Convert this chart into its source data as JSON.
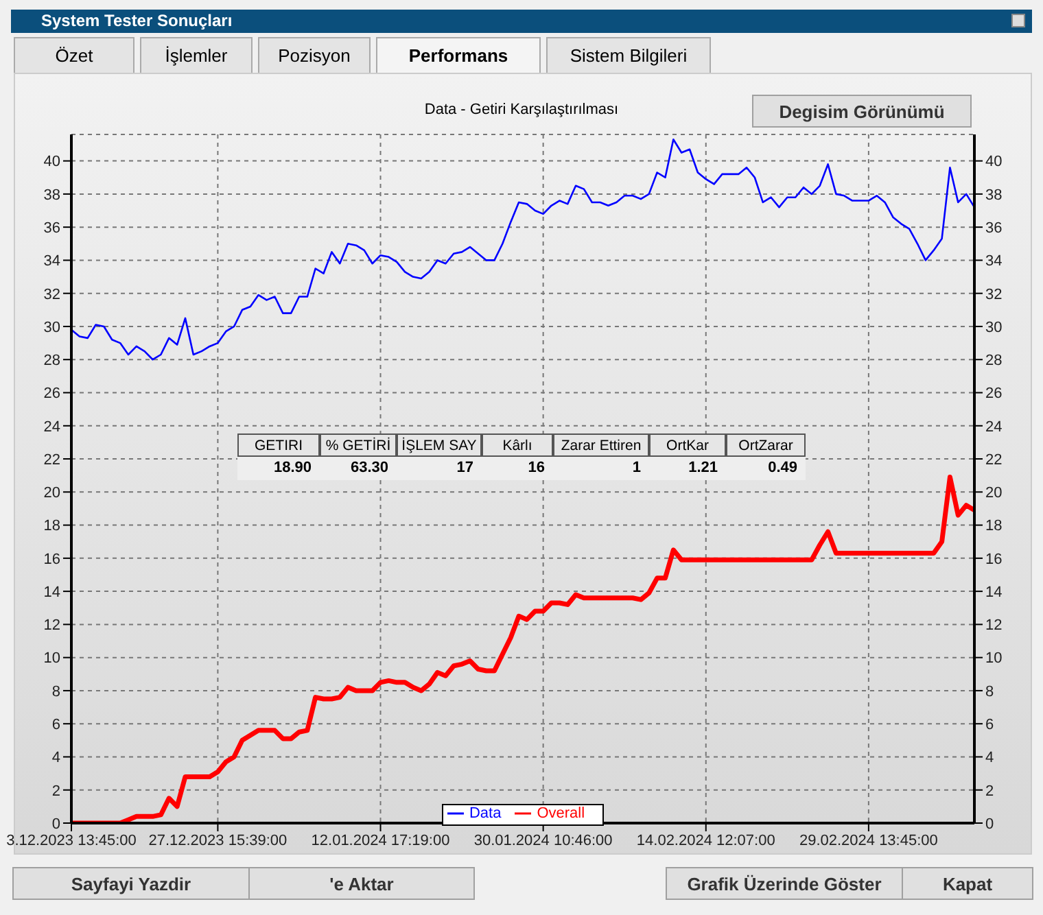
{
  "chart_data": {
    "type": "line",
    "title": "Data - Getiri Karşılaştırılması",
    "categories": [
      "3.12.2023 13:45:00",
      null,
      null,
      null,
      null,
      null,
      null,
      null,
      null,
      null,
      null,
      null,
      null,
      null,
      null,
      null,
      null,
      null,
      "27.12.2023 15:39:00",
      null,
      null,
      null,
      null,
      null,
      null,
      null,
      null,
      null,
      null,
      null,
      null,
      null,
      null,
      null,
      null,
      null,
      null,
      null,
      "12.01.2024 17:19:00",
      null,
      null,
      null,
      null,
      null,
      null,
      null,
      null,
      null,
      null,
      null,
      null,
      null,
      null,
      null,
      null,
      null,
      null,
      null,
      "30.01.2024 10:46:00",
      null,
      null,
      null,
      null,
      null,
      null,
      null,
      null,
      null,
      null,
      null,
      null,
      null,
      null,
      null,
      null,
      null,
      null,
      null,
      "14.02.2024 12:07:00",
      null,
      null,
      null,
      null,
      null,
      null,
      null,
      null,
      null,
      null,
      null,
      null,
      null,
      null,
      null,
      null,
      null,
      null,
      null,
      "29.02.2024 13:45:00",
      null,
      null,
      null,
      null,
      null,
      null,
      null,
      null,
      null,
      null,
      null,
      null,
      null
    ],
    "series": [
      {
        "name": "Data",
        "color": "#0000ff",
        "values": [
          29.8,
          29.4,
          29.3,
          30.1,
          30.0,
          29.2,
          29.0,
          28.3,
          28.8,
          28.5,
          28.0,
          28.3,
          29.3,
          28.9,
          30.5,
          28.3,
          28.5,
          28.8,
          29.0,
          29.7,
          30.0,
          31.0,
          31.2,
          31.9,
          31.6,
          31.8,
          30.8,
          30.8,
          31.8,
          31.8,
          33.5,
          33.2,
          34.5,
          33.8,
          35.0,
          34.9,
          34.6,
          33.8,
          34.3,
          34.2,
          33.9,
          33.3,
          33.0,
          32.9,
          33.3,
          34.0,
          33.8,
          34.4,
          34.5,
          34.8,
          34.4,
          34.0,
          34.0,
          35.0,
          36.3,
          37.5,
          37.4,
          37.0,
          36.8,
          37.3,
          37.6,
          37.4,
          38.5,
          38.3,
          37.5,
          37.5,
          37.3,
          37.5,
          37.9,
          37.9,
          37.7,
          38.0,
          39.3,
          39.0,
          41.3,
          40.5,
          40.7,
          39.3,
          38.9,
          38.6,
          39.2,
          39.2,
          39.2,
          39.6,
          39.0,
          37.5,
          37.8,
          37.2,
          37.8,
          37.8,
          38.4,
          38.0,
          38.5,
          39.8,
          38.0,
          37.9,
          37.6,
          37.6,
          37.6,
          37.9,
          37.5,
          36.6,
          36.2,
          35.9,
          35.0,
          34.0,
          34.6,
          35.3,
          39.6,
          37.5,
          38.0,
          37.2
        ]
      },
      {
        "name": "Overall",
        "color": "#ff0000",
        "values": [
          0,
          0,
          0,
          0,
          0,
          0,
          0,
          0.2,
          0.4,
          0.4,
          0.4,
          0.5,
          1.5,
          1.0,
          2.8,
          2.8,
          2.8,
          2.8,
          3.1,
          3.7,
          4.0,
          5.0,
          5.3,
          5.6,
          5.6,
          5.6,
          5.1,
          5.1,
          5.5,
          5.6,
          7.6,
          7.5,
          7.5,
          7.6,
          8.2,
          8.0,
          8.0,
          8.0,
          8.5,
          8.6,
          8.5,
          8.5,
          8.2,
          8.0,
          8.4,
          9.1,
          8.9,
          9.5,
          9.6,
          9.8,
          9.3,
          9.2,
          9.2,
          10.2,
          11.2,
          12.5,
          12.3,
          12.8,
          12.8,
          13.3,
          13.3,
          13.2,
          13.8,
          13.6,
          13.6,
          13.6,
          13.6,
          13.6,
          13.6,
          13.6,
          13.5,
          13.9,
          14.8,
          14.8,
          16.5,
          15.9,
          15.9,
          15.9,
          15.9,
          15.9,
          15.9,
          15.9,
          15.9,
          15.9,
          15.9,
          15.9,
          15.9,
          15.9,
          15.9,
          15.9,
          15.9,
          15.9,
          16.8,
          17.6,
          16.3,
          16.3,
          16.3,
          16.3,
          16.3,
          16.3,
          16.3,
          16.3,
          16.3,
          16.3,
          16.3,
          16.3,
          16.3,
          17.0,
          20.9,
          18.6,
          19.2,
          18.9
        ]
      }
    ],
    "ylim": [
      0,
      41.6
    ],
    "yticks": [
      0,
      2,
      4,
      6,
      8,
      10,
      12,
      14,
      16,
      18,
      20,
      22,
      24,
      26,
      28,
      30,
      32,
      34,
      36,
      38,
      40
    ],
    "y2lim": [
      0,
      41.6
    ],
    "y2ticks": [
      0,
      2,
      4,
      6,
      8,
      10,
      12,
      14,
      16,
      18,
      20,
      22,
      24,
      26,
      28,
      30,
      32,
      34,
      36,
      38,
      40
    ],
    "grid": true,
    "legend": "bottom",
    "line_style": "solid",
    "annotations": [
      "System Tester Sonuçları",
      "Özet",
      "İşlemler",
      "Pozisyon",
      "Performans",
      "Sistem Bilgileri",
      "Degisim Görünümü",
      "GETIRI",
      "% GETİRİ",
      "İŞLEM SAY",
      "Kârlı",
      "Zarar Ettiren",
      "OrtKar",
      "OrtZarar",
      "18.90",
      "63.30",
      "17",
      "16",
      "1",
      "1.21",
      "0.49",
      "Sayfayi Yazdir",
      "'e Aktar",
      "Grafik Üzerinde Göster",
      "Kapat"
    ]
  }
}
